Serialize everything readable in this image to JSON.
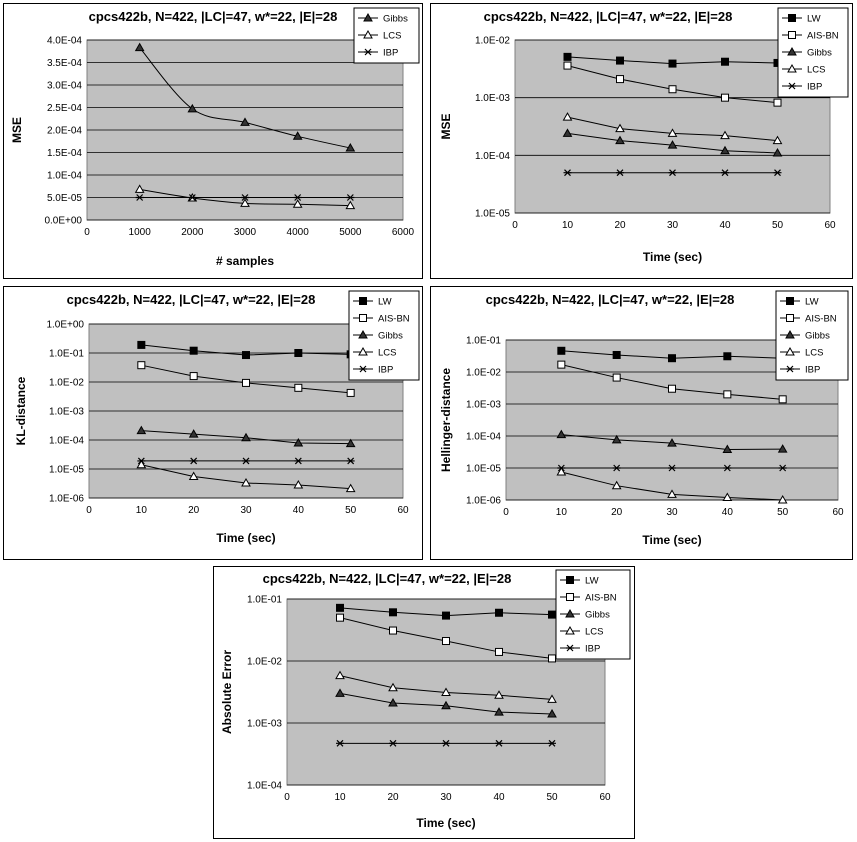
{
  "chart_data": [
    {
      "type": "line",
      "title": "cpcs422b, N=422, |LC|=47, w*=22, |E|=28",
      "xlabel": "# samples",
      "ylabel": "MSE",
      "xlim": [
        0,
        6000
      ],
      "ylim": [
        0,
        0.0004
      ],
      "yscale": "linear",
      "xticks": [
        0,
        1000,
        2000,
        3000,
        4000,
        5000,
        6000
      ],
      "xtick_labels": [
        "0",
        "1000",
        "2000",
        "3000",
        "4000",
        "5000",
        "6000"
      ],
      "yticks": [
        0,
        5e-05,
        0.0001,
        0.00015,
        0.0002,
        0.00025,
        0.0003,
        0.00035,
        0.0004
      ],
      "ytick_labels": [
        "0.0E+00",
        "5.0E-05",
        "1.0E-04",
        "1.5E-04",
        "2.0E-04",
        "2.5E-04",
        "3.0E-04",
        "3.5E-04",
        "4.0E-04"
      ],
      "x": [
        1000,
        2000,
        3000,
        4000,
        5000
      ],
      "grid": true,
      "legend_position": "right",
      "series": [
        {
          "name": "Gibbs",
          "marker": "filled-triangle",
          "values": [
            0.000383,
            0.000247,
            0.000217,
            0.000186,
            0.00016
          ]
        },
        {
          "name": "LCS",
          "marker": "open-triangle",
          "values": [
            6.8e-05,
            4.9e-05,
            3.7e-05,
            3.5e-05,
            3.2e-05
          ]
        },
        {
          "name": "IBP",
          "marker": "star",
          "values": [
            5e-05,
            5e-05,
            5e-05,
            5e-05,
            5e-05
          ]
        }
      ]
    },
    {
      "type": "line",
      "title": "cpcs422b, N=422, |LC|=47, w*=22, |E|=28",
      "xlabel": "Time (sec)",
      "ylabel": "MSE",
      "xlim": [
        0,
        60
      ],
      "ylim": [
        1e-05,
        0.01
      ],
      "yscale": "log",
      "xticks": [
        0,
        10,
        20,
        30,
        40,
        50,
        60
      ],
      "xtick_labels": [
        "0",
        "10",
        "20",
        "30",
        "40",
        "50",
        "60"
      ],
      "yticks": [
        1e-05,
        0.0001,
        0.001,
        0.01
      ],
      "ytick_labels": [
        "1.0E-05",
        "1.0E-04",
        "1.0E-03",
        "1.0E-02"
      ],
      "x": [
        10,
        20,
        30,
        40,
        50
      ],
      "grid": true,
      "legend_position": "right",
      "series": [
        {
          "name": "LW",
          "marker": "filled-square",
          "values": [
            0.0051,
            0.0044,
            0.0039,
            0.0042,
            0.004
          ]
        },
        {
          "name": "AIS-BN",
          "marker": "open-square",
          "values": [
            0.0036,
            0.0021,
            0.0014,
            0.001,
            0.00082
          ]
        },
        {
          "name": "Gibbs",
          "marker": "filled-triangle",
          "values": [
            0.00024,
            0.00018,
            0.00015,
            0.00012,
            0.00011
          ]
        },
        {
          "name": "LCS",
          "marker": "open-triangle",
          "values": [
            0.00046,
            0.00029,
            0.00024,
            0.00022,
            0.00018
          ]
        },
        {
          "name": "IBP",
          "marker": "star",
          "values": [
            5e-05,
            5e-05,
            5e-05,
            5e-05,
            5e-05
          ]
        }
      ]
    },
    {
      "type": "line",
      "title": "cpcs422b, N=422, |LC|=47, w*=22, |E|=28",
      "xlabel": "Time (sec)",
      "ylabel": "KL-distance",
      "xlim": [
        0,
        60
      ],
      "ylim": [
        1e-06,
        1
      ],
      "yscale": "log",
      "xticks": [
        0,
        10,
        20,
        30,
        40,
        50,
        60
      ],
      "xtick_labels": [
        "0",
        "10",
        "20",
        "30",
        "40",
        "50",
        "60"
      ],
      "yticks": [
        1e-06,
        1e-05,
        0.0001,
        0.001,
        0.01,
        0.1,
        1
      ],
      "ytick_labels": [
        "1.0E-06",
        "1.0E-05",
        "1.0E-04",
        "1.0E-03",
        "1.0E-02",
        "1.0E-01",
        "1.0E+00"
      ],
      "x": [
        10,
        20,
        30,
        40,
        50
      ],
      "grid": true,
      "legend_position": "right",
      "series": [
        {
          "name": "LW",
          "marker": "filled-square",
          "values": [
            0.19,
            0.12,
            0.085,
            0.1,
            0.09
          ]
        },
        {
          "name": "AIS-BN",
          "marker": "open-square",
          "values": [
            0.038,
            0.016,
            0.0093,
            0.0063,
            0.0042
          ]
        },
        {
          "name": "Gibbs",
          "marker": "filled-triangle",
          "values": [
            0.00021,
            0.00016,
            0.00012,
            7.9e-05,
            7.5e-05
          ]
        },
        {
          "name": "LCS",
          "marker": "open-triangle",
          "values": [
            1.4e-05,
            5.5e-06,
            3.3e-06,
            2.8e-06,
            2.1e-06
          ]
        },
        {
          "name": "IBP",
          "marker": "star",
          "values": [
            1.9e-05,
            1.9e-05,
            1.9e-05,
            1.9e-05,
            1.9e-05
          ]
        }
      ]
    },
    {
      "type": "line",
      "title": "cpcs422b, N=422, |LC|=47, w*=22, |E|=28",
      "xlabel": "Time (sec)",
      "ylabel": "Hellinger-distance",
      "xlim": [
        0,
        60
      ],
      "ylim": [
        1e-06,
        0.1
      ],
      "yscale": "log",
      "xticks": [
        0,
        10,
        20,
        30,
        40,
        50,
        60
      ],
      "xtick_labels": [
        "0",
        "10",
        "20",
        "30",
        "40",
        "50",
        "60"
      ],
      "yticks": [
        1e-06,
        1e-05,
        0.0001,
        0.001,
        0.01,
        0.1
      ],
      "ytick_labels": [
        "1.0E-06",
        "1.0E-05",
        "1.0E-04",
        "1.0E-03",
        "1.0E-02",
        "1.0E-01"
      ],
      "x": [
        10,
        20,
        30,
        40,
        50
      ],
      "grid": true,
      "legend_position": "right",
      "series": [
        {
          "name": "LW",
          "marker": "filled-square",
          "values": [
            0.046,
            0.034,
            0.027,
            0.031,
            0.027
          ]
        },
        {
          "name": "AIS-BN",
          "marker": "open-square",
          "values": [
            0.017,
            0.0067,
            0.003,
            0.002,
            0.0014
          ]
        },
        {
          "name": "Gibbs",
          "marker": "filled-triangle",
          "values": [
            0.00011,
            7.6e-05,
            6e-05,
            3.8e-05,
            3.9e-05
          ]
        },
        {
          "name": "LCS",
          "marker": "open-triangle",
          "values": [
            7.5e-06,
            2.8e-06,
            1.5e-06,
            1.2e-06,
            1e-06
          ]
        },
        {
          "name": "IBP",
          "marker": "star",
          "values": [
            1e-05,
            1e-05,
            1e-05,
            1e-05,
            1e-05
          ]
        }
      ]
    },
    {
      "type": "line",
      "title": "cpcs422b, N=422, |LC|=47, w*=22, |E|=28",
      "xlabel": "Time (sec)",
      "ylabel": "Absolute Error",
      "xlim": [
        0,
        60
      ],
      "ylim": [
        0.0001,
        0.1
      ],
      "yscale": "log",
      "xticks": [
        0,
        10,
        20,
        30,
        40,
        50,
        60
      ],
      "xtick_labels": [
        "0",
        "10",
        "20",
        "30",
        "40",
        "50",
        "60"
      ],
      "yticks": [
        0.0001,
        0.001,
        0.01,
        0.1
      ],
      "ytick_labels": [
        "1.0E-04",
        "1.0E-03",
        "1.0E-02",
        "1.0E-01"
      ],
      "x": [
        10,
        20,
        30,
        40,
        50
      ],
      "grid": true,
      "legend_position": "right",
      "series": [
        {
          "name": "LW",
          "marker": "filled-square",
          "values": [
            0.072,
            0.061,
            0.054,
            0.06,
            0.056
          ]
        },
        {
          "name": "AIS-BN",
          "marker": "open-square",
          "values": [
            0.05,
            0.031,
            0.021,
            0.014,
            0.011
          ]
        },
        {
          "name": "Gibbs",
          "marker": "filled-triangle",
          "values": [
            0.003,
            0.0021,
            0.0019,
            0.0015,
            0.0014
          ]
        },
        {
          "name": "LCS",
          "marker": "open-triangle",
          "values": [
            0.0058,
            0.0037,
            0.0031,
            0.0028,
            0.0024
          ]
        },
        {
          "name": "IBP",
          "marker": "star",
          "values": [
            0.00047,
            0.00047,
            0.00047,
            0.00047,
            0.00047
          ]
        }
      ]
    }
  ]
}
